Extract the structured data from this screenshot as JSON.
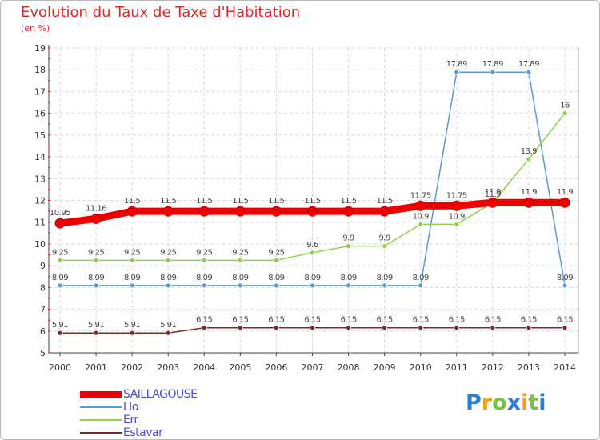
{
  "title": "Evolution du Taux de Taxe d'Habitation",
  "subtitle": "(en %)",
  "logo": {
    "text": "Proxiti",
    "letters": [
      {
        "ch": "P",
        "color": "#2b7fd4"
      },
      {
        "ch": "r",
        "color": "#f39c1f"
      },
      {
        "ch": "o",
        "color": "#7cc242"
      },
      {
        "ch": "x",
        "color": "#2b7fd4"
      },
      {
        "ch": "i",
        "color": "#f39c1f"
      },
      {
        "ch": "t",
        "color": "#7cc242"
      },
      {
        "ch": "i",
        "color": "#2b7fd4"
      }
    ]
  },
  "chart_data": {
    "type": "line",
    "title": "Evolution du Taux de Taxe d'Habitation",
    "subtitle": "(en %)",
    "xlabel": "",
    "ylabel": "",
    "x": [
      2000,
      2001,
      2002,
      2003,
      2004,
      2005,
      2006,
      2007,
      2008,
      2009,
      2010,
      2011,
      2012,
      2013,
      2014
    ],
    "ylim": [
      5,
      19
    ],
    "yticks": [
      5,
      6,
      7,
      8,
      9,
      10,
      11,
      12,
      13,
      14,
      15,
      16,
      17,
      18,
      19
    ],
    "grid": true,
    "legend_position": "bottom-left",
    "series": [
      {
        "name": "SAILLAGOUSE",
        "color": "#ee0000",
        "values": [
          10.95,
          11.16,
          11.5,
          11.5,
          11.5,
          11.5,
          11.5,
          11.5,
          11.5,
          11.5,
          11.75,
          11.75,
          11.9,
          11.9,
          11.9
        ],
        "labels": [
          "10.95",
          "11.16",
          "11.5",
          "11.5",
          "11.5",
          "11.5",
          "11.5",
          "11.5",
          "11.5",
          "11.5",
          "11.75",
          "11.75",
          "11.9",
          "11.9",
          "11.9"
        ]
      },
      {
        "name": "Llo",
        "color": "#5b9bd5",
        "values": [
          8.09,
          8.09,
          8.09,
          8.09,
          8.09,
          8.09,
          8.09,
          8.09,
          8.09,
          8.09,
          8.09,
          17.89,
          17.89,
          17.89,
          8.09
        ],
        "labels": [
          "8.09",
          "8.09",
          "8.09",
          "8.09",
          "8.09",
          "8.09",
          "8.09",
          "8.09",
          "8.09",
          "8.09",
          "8.09",
          "17.89",
          "17.89",
          "17.89",
          "8.09"
        ]
      },
      {
        "name": "Err",
        "color": "#8ed34a",
        "values": [
          9.25,
          9.25,
          9.25,
          9.25,
          9.25,
          9.25,
          9.25,
          9.6,
          9.9,
          9.9,
          10.9,
          10.9,
          11.9,
          13.9,
          16
        ],
        "labels": [
          "9.25",
          "9.25",
          "9.25",
          "9.25",
          "9.25",
          "9.25",
          "9.25",
          "9.6",
          "9.9",
          "9.9",
          "10.9",
          "10.9",
          "11.9",
          "13.9",
          "16"
        ]
      },
      {
        "name": "Estavar",
        "color": "#7a2a2a",
        "values": [
          5.91,
          5.91,
          5.91,
          5.91,
          6.15,
          6.15,
          6.15,
          6.15,
          6.15,
          6.15,
          6.15,
          6.15,
          6.15,
          6.15,
          6.15
        ],
        "labels": [
          "5.91",
          "5.91",
          "5.91",
          "5.91",
          "6.15",
          "6.15",
          "6.15",
          "6.15",
          "6.15",
          "6.15",
          "6.15",
          "6.15",
          "6.15",
          "6.15",
          "6.15"
        ]
      }
    ]
  }
}
